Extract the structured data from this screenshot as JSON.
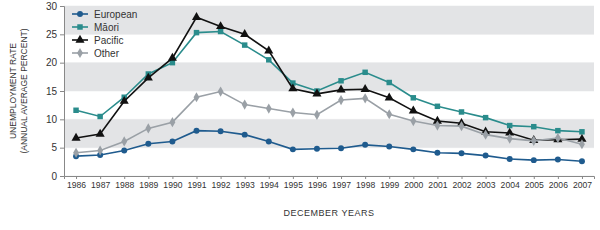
{
  "chart_data": {
    "type": "line",
    "x_label": "DECEMBER YEARS",
    "y_label": "UNEMPLOYMENT RATE (ANNUAL AVERAGE PERCENT)",
    "categories": [
      "1986",
      "1987",
      "1988",
      "1989",
      "1990",
      "1991",
      "1992",
      "1993",
      "1994",
      "1995",
      "1996",
      "1997",
      "1998",
      "1999",
      "2000",
      "2001",
      "2002",
      "2003",
      "2004",
      "2005",
      "2006",
      "2007"
    ],
    "series": [
      {
        "name": "European",
        "color": "#1f5b8e",
        "marker": "circle",
        "values": [
          3.5,
          3.7,
          4.5,
          5.7,
          6.1,
          8.0,
          7.9,
          7.3,
          6.1,
          4.7,
          4.8,
          4.9,
          5.5,
          5.2,
          4.7,
          4.1,
          4.0,
          3.6,
          3.0,
          2.8,
          2.9,
          2.6
        ]
      },
      {
        "name": "Māori",
        "color": "#2a8c8c",
        "marker": "square",
        "values": [
          11.6,
          10.5,
          13.9,
          18.0,
          20.0,
          25.3,
          25.5,
          23.1,
          20.5,
          16.4,
          15.0,
          16.8,
          18.3,
          16.5,
          13.8,
          12.3,
          11.3,
          10.3,
          8.9,
          8.7,
          8.0,
          7.8
        ]
      },
      {
        "name": "Pacific",
        "color": "#111111",
        "marker": "triangle",
        "values": [
          6.7,
          7.4,
          13.2,
          17.3,
          20.8,
          28.0,
          26.4,
          25.0,
          22.1,
          15.4,
          14.5,
          15.2,
          15.3,
          13.8,
          11.5,
          9.7,
          9.3,
          7.8,
          7.6,
          6.3,
          6.4,
          6.5
        ]
      },
      {
        "name": "Other",
        "color": "#9aa0a6",
        "marker": "diamond",
        "values": [
          4.1,
          4.5,
          6.1,
          8.4,
          9.5,
          13.9,
          14.9,
          12.6,
          11.9,
          11.2,
          10.8,
          13.4,
          13.7,
          10.9,
          9.7,
          8.9,
          8.8,
          7.3,
          6.6,
          6.2,
          6.7,
          5.6
        ]
      }
    ],
    "ylim": [
      0,
      30
    ],
    "yticks": [
      0,
      5,
      10,
      15,
      20,
      25,
      30
    ],
    "grid": true,
    "legend": "upper left"
  }
}
